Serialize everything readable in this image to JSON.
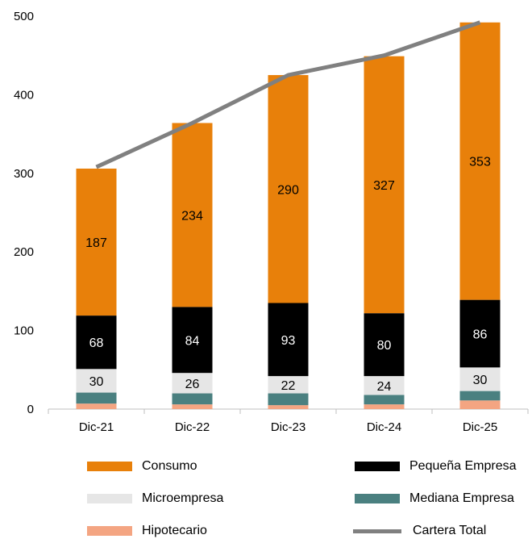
{
  "chart_data": {
    "type": "bar",
    "stacked": true,
    "categories": [
      "Dic-21",
      "Dic-22",
      "Dic-23",
      "Dic-24",
      "Dic-25"
    ],
    "ylim": [
      0,
      500
    ],
    "yticks": [
      "0",
      "100",
      "200",
      "300",
      "400",
      "500"
    ],
    "grid": false,
    "legend_position": "bottom",
    "series": [
      {
        "name": "Hipotecario",
        "color": "#f4a582",
        "values": [
          7,
          6,
          5,
          6,
          11
        ],
        "labeled": false
      },
      {
        "name": "Mediana Empresa",
        "color": "#4a8080",
        "values": [
          14,
          14,
          15,
          12,
          12
        ],
        "labeled": false
      },
      {
        "name": "Microempresa",
        "color": "#e6e6e6",
        "values": [
          30,
          26,
          22,
          24,
          30
        ],
        "labeled": true
      },
      {
        "name": "Pequeña Empresa",
        "color": "#000000",
        "values": [
          68,
          84,
          93,
          80,
          86
        ],
        "labeled": true
      },
      {
        "name": "Consumo",
        "color": "#e8800a",
        "values": [
          187,
          234,
          290,
          327,
          353
        ],
        "labeled": true
      }
    ],
    "line_series": {
      "name": "Cartera Total",
      "color": "#808080",
      "values": [
        308,
        364,
        425,
        450,
        492
      ]
    },
    "legend_order": [
      "Consumo",
      "Pequeña Empresa",
      "Microempresa",
      "Mediana Empresa",
      "Hipotecario",
      "Cartera Total"
    ]
  }
}
